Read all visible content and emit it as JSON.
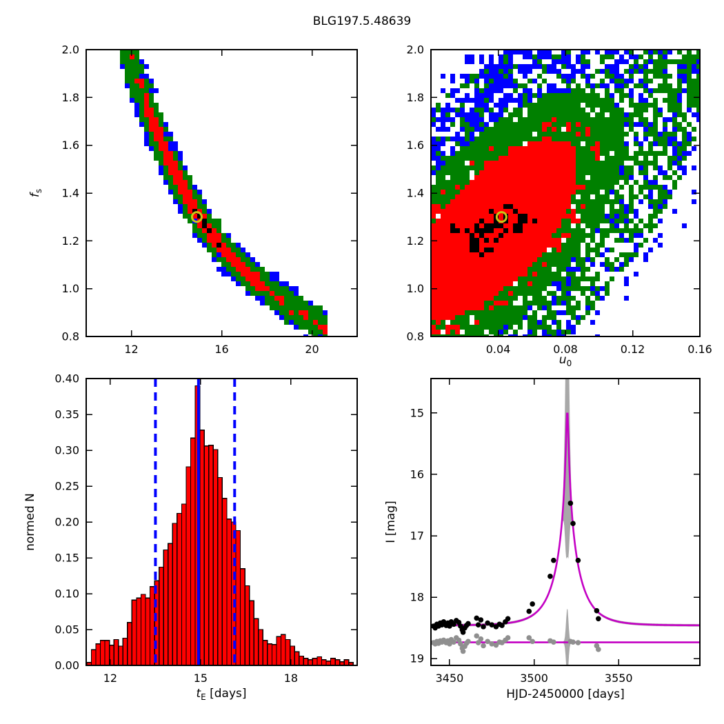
{
  "title": "BLG197.5.48639",
  "labels": {
    "fs": {
      "main": "f",
      "sub": "s"
    },
    "u0": {
      "main": "u",
      "sub": "0"
    },
    "te": {
      "main": "t",
      "sub": "E",
      "tail": " [days]"
    },
    "normed": "normed N",
    "imag": "I [mag]",
    "hjd": "HJD-2450000 [days]"
  },
  "colors": {
    "sigma3_blue": "#0000ff",
    "sigma2_green": "#008000",
    "sigma1_red": "#ff0000",
    "core_black": "#000000",
    "best_fit_yellow": "#c8c818",
    "model_magenta": "#c400c4",
    "envelope_gray": "#a8a8a8",
    "residual_points_gray": "#8f8f8f",
    "hist_fill": "#ff0000",
    "hist_edge": "#000000",
    "vline_blue": "#0000ff",
    "axis": "#000000"
  },
  "chart_data": [
    {
      "id": "p1",
      "type": "heatmap",
      "kind": "banana",
      "description": "MCMC confidence regions of blend flux fs vs Einstein time tE; blue=3sigma, green=2sigma, red=1sigma, black=best region, yellow circle=best fit",
      "xleft": 10,
      "xright": 22,
      "ytop": 2.0,
      "ybot": 0.8,
      "xticks": [
        [
          12,
          "12"
        ],
        [
          16,
          "16"
        ],
        [
          20,
          "20"
        ]
      ],
      "yticks": [
        [
          0.8,
          "0.8"
        ],
        [
          1.0,
          "1.0"
        ],
        [
          1.2,
          "1.2"
        ],
        [
          1.4,
          "1.4"
        ],
        [
          1.6,
          "1.6"
        ],
        [
          1.8,
          "1.8"
        ],
        [
          2.0,
          "2.0"
        ]
      ],
      "cell": 7,
      "seed": 20197,
      "centerline": [
        [
          11.4,
          2.1
        ],
        [
          11.9,
          1.97
        ],
        [
          12.4,
          1.83
        ],
        [
          12.9,
          1.71
        ],
        [
          13.4,
          1.6
        ],
        [
          13.9,
          1.49
        ],
        [
          14.4,
          1.395
        ],
        [
          14.9,
          1.315
        ],
        [
          15.4,
          1.245
        ],
        [
          15.9,
          1.185
        ],
        [
          16.4,
          1.13
        ],
        [
          16.9,
          1.085
        ],
        [
          17.4,
          1.045
        ],
        [
          17.9,
          1.005
        ],
        [
          18.4,
          0.97
        ],
        [
          18.9,
          0.935
        ],
        [
          19.4,
          0.905
        ],
        [
          19.9,
          0.875
        ],
        [
          20.6,
          0.835
        ]
      ],
      "t_range": [
        10.9,
        20.7
      ],
      "red_t_range": [
        12.6,
        17.6
      ],
      "black_t_range": [
        14.5,
        15.9
      ],
      "marker": {
        "x": 14.9,
        "y": 1.3,
        "r": 7
      }
    },
    {
      "id": "p2",
      "type": "heatmap",
      "kind": "blob",
      "description": "MCMC confidence regions of fs vs impact parameter u0",
      "xleft": 0,
      "xright": 0.16,
      "ytop": 2.0,
      "ybot": 0.8,
      "xticks": [
        [
          0.04,
          "0.04"
        ],
        [
          0.08,
          "0.08"
        ],
        [
          0.12,
          "0.12"
        ],
        [
          0.16,
          "0.16"
        ]
      ],
      "yticks": [
        [
          0.8,
          "0.8"
        ],
        [
          1.0,
          "1.0"
        ],
        [
          1.2,
          "1.2"
        ],
        [
          1.4,
          "1.4"
        ],
        [
          1.6,
          "1.6"
        ],
        [
          1.8,
          "1.8"
        ],
        [
          2.0,
          "2.0"
        ]
      ],
      "cell": 7,
      "seed": 48639,
      "ellipse": {
        "cx": 0.235,
        "cy": 0.375,
        "sa": 0.4,
        "sb": 0.185
      },
      "black_strips": [
        {
          "fs": 1.245,
          "hw": 0.022,
          "u_min": 0.012,
          "u_max": 0.065,
          "p": 0.68
        },
        {
          "fs": 1.295,
          "hw": 0.027,
          "u_ctr": 0.048,
          "u_hw": 0.014,
          "p": 0.3
        }
      ],
      "marker": {
        "x": 0.042,
        "y": 1.3,
        "r": 7
      }
    },
    {
      "id": "p3",
      "type": "bar",
      "description": "Posterior distribution of tE",
      "xleft": 11.2,
      "xright": 20.2,
      "ytop": 0.4,
      "ybot": 0.0,
      "xticks": [
        [
          12,
          "12"
        ],
        [
          15,
          "15"
        ],
        [
          18,
          "18"
        ]
      ],
      "yticks": [
        [
          0.0,
          "0.00"
        ],
        [
          0.05,
          "0.05"
        ],
        [
          0.1,
          "0.10"
        ],
        [
          0.15,
          "0.15"
        ],
        [
          0.2,
          "0.20"
        ],
        [
          0.25,
          "0.25"
        ],
        [
          0.3,
          "0.30"
        ],
        [
          0.35,
          "0.35"
        ],
        [
          0.4,
          "0.40"
        ]
      ],
      "bin_start": 11.22,
      "bin_width": 0.15,
      "values": [
        0.004,
        0.022,
        0.03,
        0.035,
        0.035,
        0.028,
        0.036,
        0.027,
        0.038,
        0.06,
        0.091,
        0.094,
        0.099,
        0.094,
        0.11,
        0.118,
        0.137,
        0.161,
        0.17,
        0.198,
        0.212,
        0.225,
        0.277,
        0.317,
        0.39,
        0.328,
        0.306,
        0.307,
        0.301,
        0.262,
        0.233,
        0.204,
        0.2,
        0.188,
        0.135,
        0.111,
        0.09,
        0.065,
        0.05,
        0.035,
        0.03,
        0.029,
        0.04,
        0.043,
        0.036,
        0.027,
        0.019,
        0.013,
        0.01,
        0.008,
        0.01,
        0.012,
        0.008,
        0.006,
        0.01,
        0.008,
        0.005,
        0.008,
        0.004
      ],
      "vline_solid": 14.93,
      "vlines_dashed": [
        13.5,
        16.13
      ]
    },
    {
      "id": "p4",
      "type": "lightcurve",
      "description": "I-band light curve with Paczynski model (magenta), model uncertainty envelope (gray) and residuals around horizontal line",
      "xleft": 3439,
      "xright": 3598,
      "ytop": 14.44,
      "ybot": 19.11,
      "xticks": [
        [
          3450,
          "3450"
        ],
        [
          3500,
          "3500"
        ],
        [
          3550,
          "3550"
        ]
      ],
      "yticks": [
        [
          15,
          "15"
        ],
        [
          16,
          "16"
        ],
        [
          17,
          "17"
        ],
        [
          18,
          "18"
        ],
        [
          19,
          "19"
        ]
      ],
      "model": {
        "t0": 3519.6,
        "tE": 14.93,
        "u0": 0.0395,
        "baseline": 18.46
      },
      "residual_line": 18.735,
      "envelope": {
        "min": 0.02,
        "amp": 2.3,
        "w": 1.5,
        "amp2": 0.06,
        "w2": 9
      },
      "residual_envelope": {
        "min": 0.012,
        "amp": 0.55,
        "w": 1.0
      },
      "black_points": [
        [
          3440.5,
          18.47
        ],
        [
          3441.5,
          18.5
        ],
        [
          3442.5,
          18.44
        ],
        [
          3443.5,
          18.47
        ],
        [
          3444.5,
          18.42
        ],
        [
          3445.5,
          18.45
        ],
        [
          3446.5,
          18.4
        ],
        [
          3448,
          18.46
        ],
        [
          3449,
          18.42
        ],
        [
          3450,
          18.47
        ],
        [
          3451,
          18.4
        ],
        [
          3452.5,
          18.44
        ],
        [
          3454,
          18.38
        ],
        [
          3455.5,
          18.41
        ],
        [
          3456.5,
          18.47
        ],
        [
          3457.5,
          18.53
        ],
        [
          3458,
          18.57
        ],
        [
          3459,
          18.5
        ],
        [
          3460,
          18.46
        ],
        [
          3461,
          18.43
        ],
        [
          3466,
          18.34
        ],
        [
          3467,
          18.45
        ],
        [
          3468.5,
          18.37
        ],
        [
          3470,
          18.48
        ],
        [
          3472.5,
          18.42
        ],
        [
          3475,
          18.45
        ],
        [
          3477.5,
          18.48
        ],
        [
          3479.5,
          18.44
        ],
        [
          3481,
          18.46
        ],
        [
          3483,
          18.4
        ],
        [
          3484.5,
          18.35
        ],
        [
          3497,
          18.23
        ],
        [
          3499,
          18.11
        ],
        [
          3509.5,
          17.66
        ],
        [
          3511.5,
          17.4
        ],
        [
          3521.5,
          16.47
        ],
        [
          3523,
          16.8
        ],
        [
          3526,
          17.4
        ],
        [
          3537,
          18.22
        ],
        [
          3538,
          18.35
        ]
      ],
      "gray_points": [
        [
          3440.5,
          18.74
        ],
        [
          3441.5,
          18.76
        ],
        [
          3442.5,
          18.72
        ],
        [
          3443.5,
          18.75
        ],
        [
          3444.5,
          18.71
        ],
        [
          3445.5,
          18.73
        ],
        [
          3446.5,
          18.7
        ],
        [
          3448,
          18.74
        ],
        [
          3449,
          18.71
        ],
        [
          3450,
          18.76
        ],
        [
          3451,
          18.69
        ],
        [
          3452.5,
          18.73
        ],
        [
          3454,
          18.66
        ],
        [
          3455.5,
          18.7
        ],
        [
          3456.5,
          18.76
        ],
        [
          3457.5,
          18.83
        ],
        [
          3458,
          18.88
        ],
        [
          3459,
          18.8
        ],
        [
          3460,
          18.75
        ],
        [
          3461,
          18.72
        ],
        [
          3466,
          18.63
        ],
        [
          3467,
          18.74
        ],
        [
          3468.5,
          18.68
        ],
        [
          3470,
          18.79
        ],
        [
          3472.5,
          18.72
        ],
        [
          3475,
          18.76
        ],
        [
          3477.5,
          18.78
        ],
        [
          3479.5,
          18.73
        ],
        [
          3481,
          18.74
        ],
        [
          3483,
          18.7
        ],
        [
          3484.5,
          18.66
        ],
        [
          3497,
          18.66
        ],
        [
          3499,
          18.72
        ],
        [
          3509.5,
          18.71
        ],
        [
          3511.5,
          18.73
        ],
        [
          3521.5,
          18.72
        ],
        [
          3523,
          18.73
        ],
        [
          3526,
          18.74
        ],
        [
          3537,
          18.79
        ],
        [
          3538,
          18.85
        ]
      ]
    }
  ],
  "layout_note": "panels: p1(125,72,393x416) p2(625,72,390x416) p3(125,549,393x416) p4(625,549,390x416)"
}
